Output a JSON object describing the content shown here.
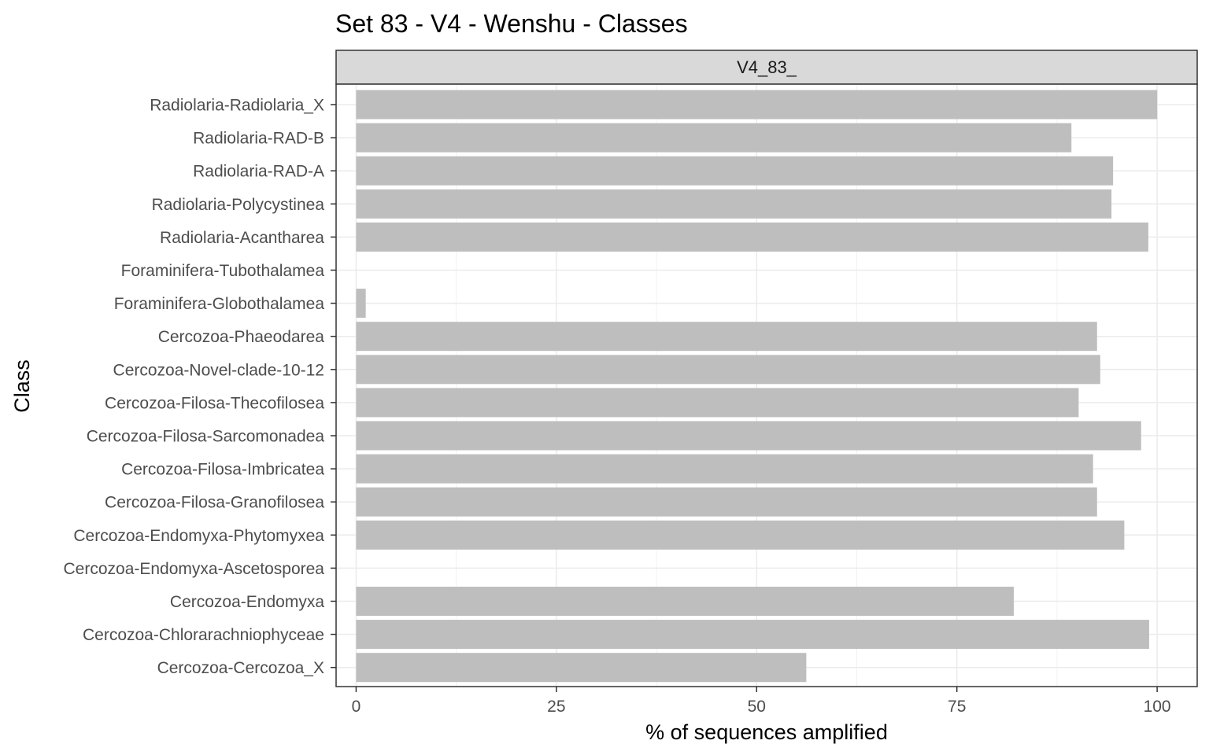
{
  "chart_data": {
    "type": "bar",
    "orientation": "horizontal",
    "title": "Set 83 - V4 - Wenshu - Classes",
    "facet_label": "V4_83_",
    "xlabel": "% of sequences amplified",
    "ylabel": "Class",
    "xlim": [
      -2.5,
      105
    ],
    "x_ticks": [
      0,
      25,
      50,
      75,
      100
    ],
    "x_tick_labels": [
      "0",
      "25",
      "50",
      "75",
      "100"
    ],
    "grid": true,
    "bar_color": "#bebebe",
    "categories": [
      "Radiolaria-Radiolaria_X",
      "Radiolaria-RAD-B",
      "Radiolaria-RAD-A",
      "Radiolaria-Polycystinea",
      "Radiolaria-Acantharea",
      "Foraminifera-Tubothalamea",
      "Foraminifera-Globothalamea",
      "Cercozoa-Phaeodarea",
      "Cercozoa-Novel-clade-10-12",
      "Cercozoa-Filosa-Thecofilosea",
      "Cercozoa-Filosa-Sarcomonadea",
      "Cercozoa-Filosa-Imbricatea",
      "Cercozoa-Filosa-Granofilosea",
      "Cercozoa-Endomyxa-Phytomyxea",
      "Cercozoa-Endomyxa-Ascetosporea",
      "Cercozoa-Endomyxa",
      "Cercozoa-Chlorarachniophyceae",
      "Cercozoa-Cercozoa_X"
    ],
    "values": [
      100,
      89.3,
      94.5,
      94.3,
      98.9,
      0,
      1.2,
      92.5,
      92.9,
      90.2,
      98.0,
      92.0,
      92.5,
      95.9,
      0,
      82.1,
      99.0,
      56.2
    ]
  }
}
